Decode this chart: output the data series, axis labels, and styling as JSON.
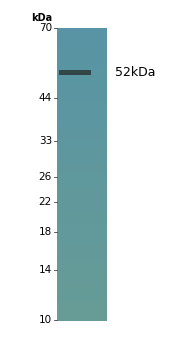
{
  "background_color": "#ffffff",
  "gel_color": "#5e96a8",
  "band_kda": 52,
  "band_color": "#2a3535",
  "band_label": "52kDa",
  "marker_label": "kDa",
  "markers": [
    70,
    44,
    33,
    26,
    22,
    18,
    14,
    10
  ],
  "label_fontsize": 7.5,
  "band_label_fontsize": 9,
  "kda_label_fontsize": 7
}
